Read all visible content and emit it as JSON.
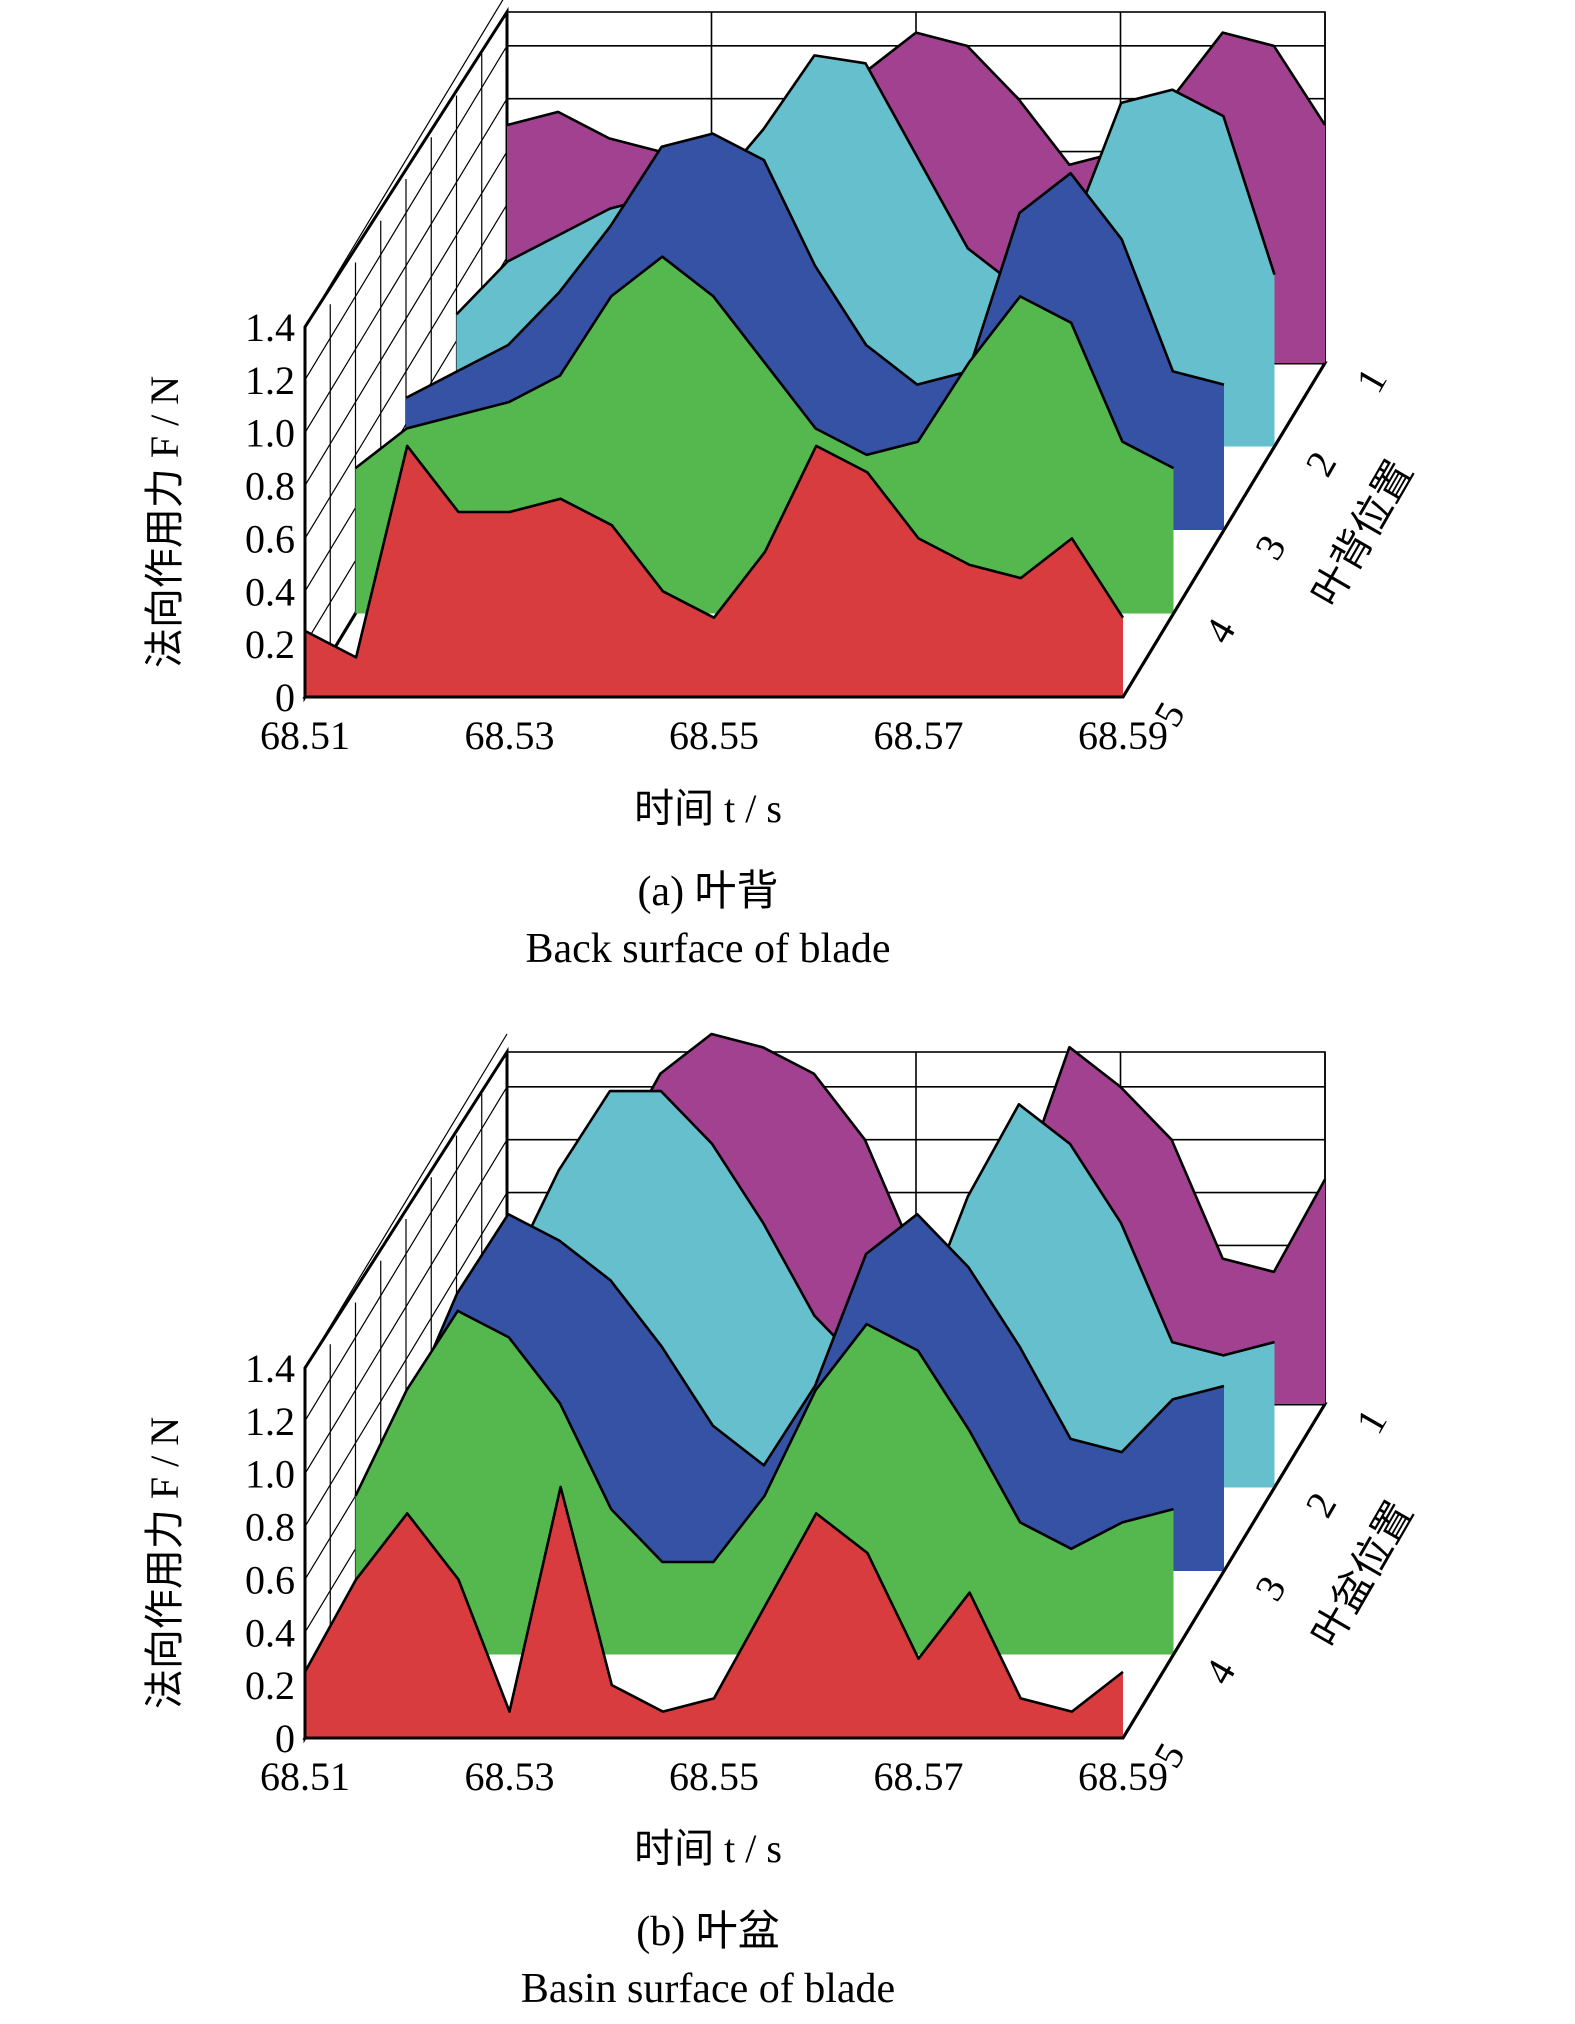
{
  "chart_data": [
    {
      "type": "area",
      "panel_label": "(a) 叶背",
      "caption": "Back surface of blade",
      "xlabel": "时间 t / s",
      "ylabel": "法向作用力 F / N",
      "zlabel": "叶背位置",
      "xlim": [
        68.51,
        68.59
      ],
      "ylim": [
        0,
        1.4
      ],
      "xticks": [
        "68.51",
        "68.53",
        "68.55",
        "68.57",
        "68.59"
      ],
      "yticks": [
        "0",
        "0.2",
        "0.4",
        "0.6",
        "0.8",
        "1.0",
        "1.2",
        "1.4"
      ],
      "zticks": [
        "1",
        "2",
        "3",
        "4",
        "5"
      ],
      "x": [
        68.51,
        68.515,
        68.52,
        68.525,
        68.53,
        68.535,
        68.54,
        68.545,
        68.55,
        68.555,
        68.56,
        68.565,
        68.57,
        68.575,
        68.58,
        68.585,
        68.59
      ],
      "series": [
        {
          "position": "1",
          "color": "#a1418f",
          "values": [
            0.9,
            0.95,
            0.85,
            0.8,
            0.75,
            0.7,
            0.92,
            1.1,
            1.25,
            1.2,
            1.0,
            0.75,
            0.8,
            1.0,
            1.25,
            1.2,
            0.9
          ]
        },
        {
          "position": "2",
          "color": "#66bfcc",
          "values": [
            0.5,
            0.7,
            0.8,
            0.9,
            0.95,
            0.97,
            1.2,
            1.48,
            1.45,
            1.1,
            0.75,
            0.6,
            0.8,
            1.3,
            1.35,
            1.25,
            0.65
          ]
        },
        {
          "position": "3",
          "color": "#3552a4",
          "values": [
            0.5,
            0.6,
            0.7,
            0.9,
            1.15,
            1.45,
            1.5,
            1.4,
            1.0,
            0.7,
            0.55,
            0.6,
            1.2,
            1.35,
            1.1,
            0.6,
            0.55
          ]
        },
        {
          "position": "4",
          "color": "#55b84f",
          "values": [
            0.55,
            0.7,
            0.75,
            0.8,
            0.9,
            1.2,
            1.35,
            1.2,
            0.95,
            0.7,
            0.6,
            0.65,
            0.95,
            1.2,
            1.1,
            0.65,
            0.55
          ]
        },
        {
          "position": "5",
          "color": "#d93c3e",
          "values": [
            0.25,
            0.15,
            0.95,
            0.7,
            0.7,
            0.75,
            0.65,
            0.4,
            0.3,
            0.55,
            0.95,
            0.85,
            0.6,
            0.5,
            0.45,
            0.6,
            0.3
          ]
        }
      ]
    },
    {
      "type": "area",
      "panel_label": "(b) 叶盆",
      "caption": "Basin surface of blade",
      "xlabel": "时间 t / s",
      "ylabel": "法向作用力 F / N",
      "zlabel": "叶盆位置",
      "xlim": [
        68.51,
        68.59
      ],
      "ylim": [
        0,
        1.4
      ],
      "xticks": [
        "68.51",
        "68.53",
        "68.55",
        "68.57",
        "68.59"
      ],
      "yticks": [
        "0",
        "0.2",
        "0.4",
        "0.6",
        "0.8",
        "1.0",
        "1.2",
        "1.4"
      ],
      "zticks": [
        "1",
        "2",
        "3",
        "4",
        "5"
      ],
      "x": [
        68.51,
        68.515,
        68.52,
        68.525,
        68.53,
        68.535,
        68.54,
        68.545,
        68.55,
        68.555,
        68.56,
        68.565,
        68.57,
        68.575,
        68.58,
        68.585,
        68.59
      ],
      "series": [
        {
          "position": "1",
          "color": "#a1418f",
          "values": [
            0.3,
            0.6,
            0.9,
            1.25,
            1.4,
            1.35,
            1.25,
            1.0,
            0.55,
            0.4,
            0.8,
            1.35,
            1.2,
            1.0,
            0.55,
            0.5,
            0.85
          ]
        },
        {
          "position": "2",
          "color": "#66bfcc",
          "values": [
            0.5,
            0.8,
            1.2,
            1.5,
            1.5,
            1.3,
            1.0,
            0.65,
            0.45,
            0.6,
            1.1,
            1.45,
            1.3,
            1.0,
            0.55,
            0.5,
            0.55
          ]
        },
        {
          "position": "3",
          "color": "#3552a4",
          "values": [
            0.6,
            1.05,
            1.35,
            1.25,
            1.1,
            0.85,
            0.55,
            0.4,
            0.7,
            1.2,
            1.35,
            1.15,
            0.85,
            0.5,
            0.45,
            0.65,
            0.7
          ]
        },
        {
          "position": "4",
          "color": "#55b84f",
          "values": [
            0.6,
            1.0,
            1.3,
            1.2,
            0.95,
            0.55,
            0.35,
            0.35,
            0.6,
            1.0,
            1.25,
            1.15,
            0.85,
            0.5,
            0.4,
            0.5,
            0.55
          ]
        },
        {
          "position": "5",
          "color": "#d93c3e",
          "values": [
            0.25,
            0.6,
            0.85,
            0.6,
            0.1,
            0.95,
            0.2,
            0.1,
            0.15,
            0.5,
            0.85,
            0.7,
            0.3,
            0.55,
            0.15,
            0.1,
            0.25
          ]
        }
      ]
    }
  ]
}
